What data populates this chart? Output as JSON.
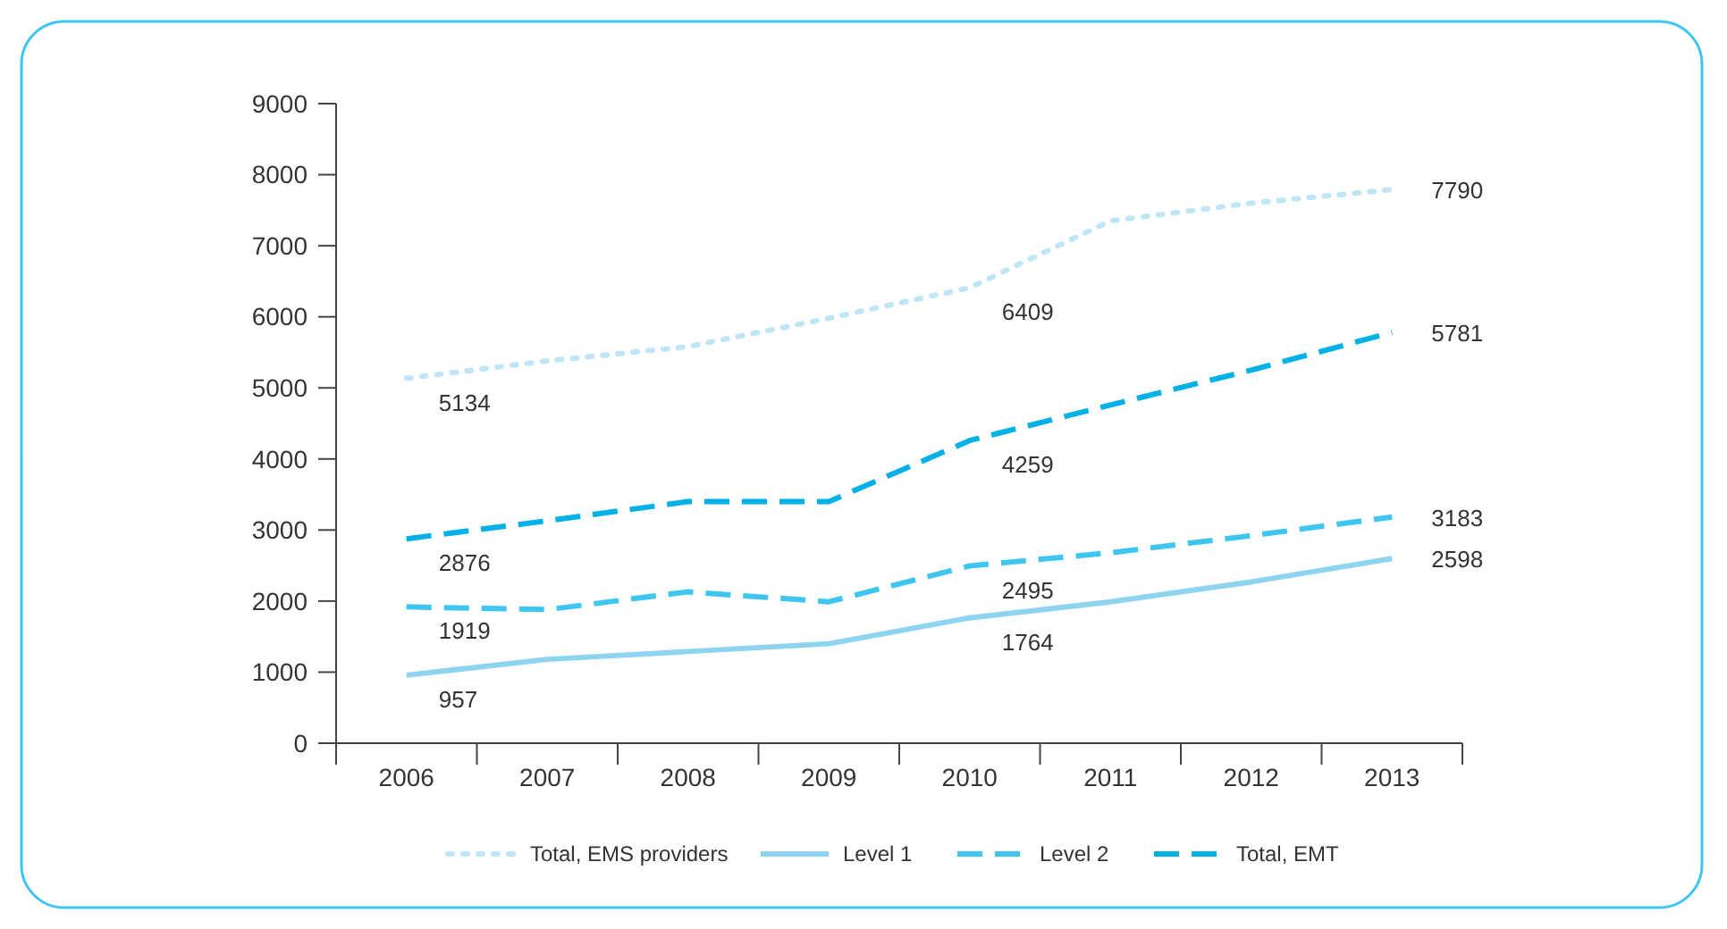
{
  "chart_data": {
    "type": "line",
    "categories": [
      "2006",
      "2007",
      "2008",
      "2009",
      "2010",
      "2011",
      "2012",
      "2013"
    ],
    "series": [
      {
        "name": "Total, EMS providers",
        "color": "#bfe6f6",
        "line_style": "dotted",
        "values": [
          5134,
          5380,
          5580,
          5980,
          6409,
          7350,
          7600,
          7790
        ],
        "value_labels": [
          "5134",
          null,
          null,
          null,
          "6409",
          null,
          null,
          "7790"
        ]
      },
      {
        "name": "Level 1",
        "color": "#8ed4f1",
        "line_style": "solid",
        "values": [
          957,
          1180,
          1290,
          1400,
          1764,
          1990,
          2270,
          2598
        ],
        "value_labels": [
          "957",
          null,
          null,
          null,
          "1764",
          null,
          null,
          "2598"
        ]
      },
      {
        "name": "Level 2",
        "color": "#3ec6f0",
        "line_style": "dashed",
        "values": [
          1919,
          1880,
          2130,
          1990,
          2495,
          2680,
          2920,
          3183
        ],
        "value_labels": [
          "1919",
          null,
          null,
          null,
          "2495",
          null,
          null,
          "3183"
        ]
      },
      {
        "name": "Total, EMT",
        "color": "#00b0e6",
        "line_style": "dashed",
        "values": [
          2876,
          3130,
          3400,
          3400,
          4259,
          4760,
          5250,
          5781
        ],
        "value_labels": [
          "2876",
          null,
          null,
          null,
          "4259",
          null,
          null,
          "5781"
        ]
      }
    ],
    "ylim": [
      0,
      9000
    ],
    "yticks": [
      0,
      1000,
      2000,
      3000,
      4000,
      5000,
      6000,
      7000,
      8000,
      9000
    ],
    "grid": false,
    "legend": "bottom",
    "marker": "none"
  }
}
